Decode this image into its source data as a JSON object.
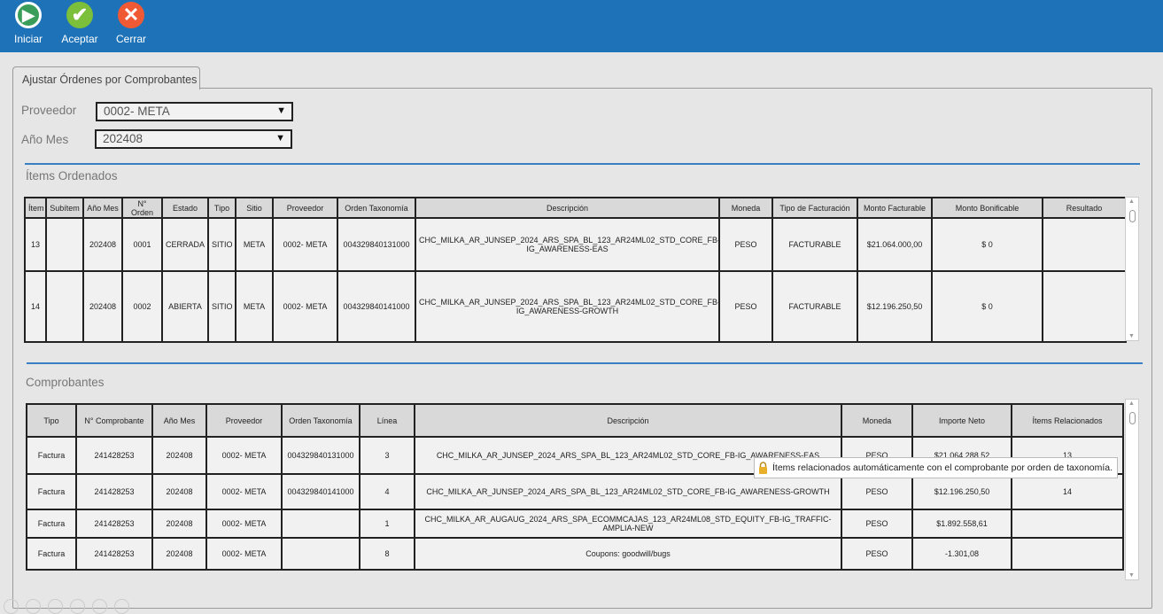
{
  "toolbar": {
    "start": "Iniciar",
    "accept": "Aceptar",
    "close": "Cerrar"
  },
  "tab": {
    "label": "Ajustar Órdenes por Comprobantes"
  },
  "filters": {
    "provider_label": "Proveedor",
    "provider_value": "0002- META",
    "month_label": "Año Mes",
    "month_value": "202408"
  },
  "ordered": {
    "title": "Ítems Ordenados",
    "headers": [
      "Ítem",
      "Subítem",
      "Año Mes",
      "N° Orden",
      "Estado",
      "Tipo",
      "Sitio",
      "Proveedor",
      "Orden Taxonomía",
      "Descripción",
      "Moneda",
      "Tipo de Facturación",
      "Monto Facturable",
      "Monto Bonificable",
      "Resultado"
    ],
    "rows": [
      [
        "13",
        "",
        "202408",
        "0001",
        "CERRADA",
        "SITIO",
        "META",
        "0002- META",
        "004329840131000",
        "CHC_MILKA_AR_JUNSEP_2024_ARS_SPA_BL_123_AR24ML02_STD_CORE_FB-IG_AWARENESS-EAS",
        "PESO",
        "FACTURABLE",
        "$21.064.000,00",
        "$ 0",
        ""
      ],
      [
        "14",
        "",
        "202408",
        "0002",
        "ABIERTA",
        "SITIO",
        "META",
        "0002- META",
        "004329840141000",
        "CHC_MILKA_AR_JUNSEP_2024_ARS_SPA_BL_123_AR24ML02_STD_CORE_FB-IG_AWARENESS-GROWTH",
        "PESO",
        "FACTURABLE",
        "$12.196.250,50",
        "$ 0",
        ""
      ]
    ]
  },
  "vouchers": {
    "title": "Comprobantes",
    "headers": [
      "Tipo",
      "N° Comprobante",
      "Año Mes",
      "Proveedor",
      "Orden Taxonomía",
      "Línea",
      "Descripción",
      "Moneda",
      "Importe Neto",
      "Ítems Relacionados"
    ],
    "rows": [
      [
        "Factura",
        "241428253",
        "202408",
        "0002- META",
        "004329840131000",
        "3",
        "CHC_MILKA_AR_JUNSEP_2024_ARS_SPA_BL_123_AR24ML02_STD_CORE_FB-IG_AWARENESS-EAS",
        "PESO",
        "$21.064.288,52",
        "13"
      ],
      [
        "Factura",
        "241428253",
        "202408",
        "0002- META",
        "004329840141000",
        "4",
        "CHC_MILKA_AR_JUNSEP_2024_ARS_SPA_BL_123_AR24ML02_STD_CORE_FB-IG_AWARENESS-GROWTH",
        "PESO",
        "$12.196.250,50",
        "14"
      ],
      [
        "Factura",
        "241428253",
        "202408",
        "0002- META",
        "",
        "1",
        "CHC_MILKA_AR_AUGAUG_2024_ARS_SPA_ECOMMCAJAS_123_AR24ML08_STD_EQUITY_FB-IG_TRAFFIC-AMPLIA-NEW",
        "PESO",
        "$1.892.558,61",
        ""
      ],
      [
        "Factura",
        "241428253",
        "202408",
        "0002- META",
        "",
        "8",
        "Coupons: goodwill/bugs",
        "PESO",
        "-1.301,08",
        ""
      ]
    ]
  },
  "tooltip": {
    "text": "Ítems relacionados automáticamente con el comprobante por orden de taxonomía.",
    "icon": "lock-icon"
  },
  "colors": {
    "topbar": "#1e72b8",
    "start": "#3a9e5a",
    "accept": "#7cbf3a",
    "close": "#ef5a35"
  }
}
